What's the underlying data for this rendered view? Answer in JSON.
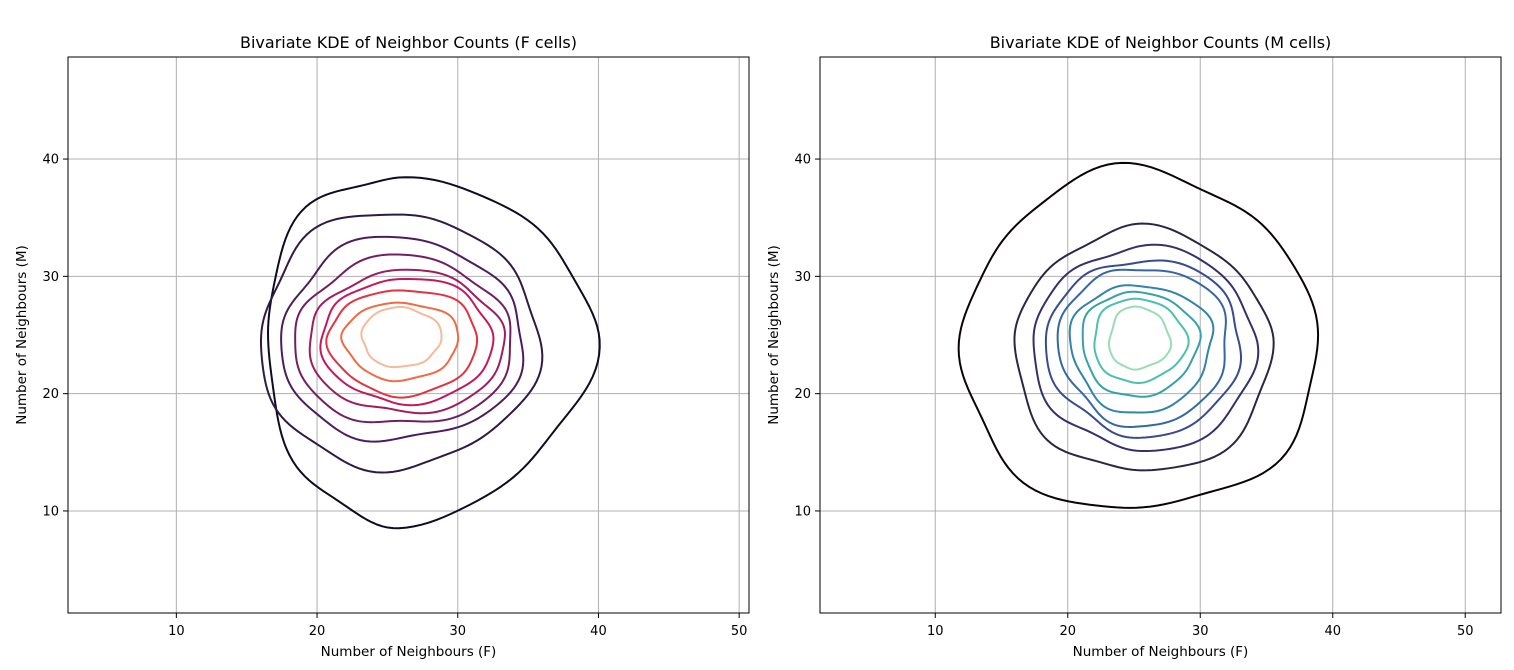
{
  "chart_data": [
    {
      "type": "contour",
      "title": "Bivariate KDE of Neighbor Counts (F cells)",
      "xlabel": "Number of Neighbours (F)",
      "ylabel": "Number of Neighbours (M)",
      "xlim": [
        2.3,
        50.7
      ],
      "ylim": [
        1.3,
        48.7
      ],
      "xticks": [
        10,
        20,
        30,
        40,
        50
      ],
      "yticks": [
        10,
        20,
        30,
        40
      ],
      "grid": true,
      "colormap": "rocket",
      "center": [
        25.8,
        24.6
      ],
      "contours": [
        {
          "level": 1,
          "color": "#0e0b22",
          "rx": [
            9.6,
            13.5
          ],
          "ry": [
            15.5,
            14.0
          ]
        },
        {
          "level": 2,
          "color": "#2e1a47",
          "rx": [
            10.0,
            9.8
          ],
          "ry": [
            11.0,
            10.8
          ]
        },
        {
          "level": 3,
          "color": "#4b1d5a",
          "rx": [
            8.4,
            8.8
          ],
          "ry": [
            8.7,
            8.6
          ]
        },
        {
          "level": 4,
          "color": "#711f63",
          "rx": [
            7.4,
            8.1
          ],
          "ry": [
            7.4,
            7.0
          ]
        },
        {
          "level": 5,
          "color": "#9b1e63",
          "rx": [
            6.3,
            7.6
          ],
          "ry": [
            6.3,
            5.8
          ]
        },
        {
          "level": 6,
          "color": "#c2185c",
          "rx": [
            5.4,
            6.8
          ],
          "ry": [
            5.4,
            5.2
          ]
        },
        {
          "level": 7,
          "color": "#e13342",
          "rx": [
            4.9,
            5.7
          ],
          "ry": [
            4.7,
            4.3
          ]
        },
        {
          "level": 8,
          "color": "#f06a43",
          "rx": [
            3.9,
            4.3
          ],
          "ry": [
            3.4,
            3.2
          ]
        },
        {
          "level": 9,
          "color": "#f6b99a",
          "rx": [
            2.6,
            3.0
          ],
          "ry": [
            2.3,
            2.8
          ]
        }
      ]
    },
    {
      "type": "contour",
      "title": "Bivariate KDE of Neighbor Counts (M cells)",
      "xlabel": "Number of Neighbours (F)",
      "ylabel": "Number of Neighbours (M)",
      "xlim": [
        1.3,
        52.7
      ],
      "ylim": [
        1.3,
        48.7
      ],
      "xticks": [
        10,
        20,
        30,
        40,
        50
      ],
      "yticks": [
        10,
        20,
        30,
        40
      ],
      "grid": true,
      "colormap": "mako",
      "center": [
        25.2,
        24.4
      ],
      "contours": [
        {
          "level": 1,
          "color": "#0b0405",
          "rx": [
            13.2,
            13.6
          ],
          "ry": [
            14.6,
            14.4
          ]
        },
        {
          "level": 2,
          "color": "#2c2545",
          "rx": [
            9.1,
            10.2
          ],
          "ry": [
            11.3,
            9.5
          ]
        },
        {
          "level": 3,
          "color": "#35306a",
          "rx": [
            7.7,
            9.1
          ],
          "ry": [
            9.3,
            8.0
          ]
        },
        {
          "level": 4,
          "color": "#384b8f",
          "rx": [
            6.7,
            8.0
          ],
          "ry": [
            8.0,
            7.0
          ]
        },
        {
          "level": 5,
          "color": "#3468a3",
          "rx": [
            5.8,
            7.0
          ],
          "ry": [
            7.1,
            6.4
          ]
        },
        {
          "level": 6,
          "color": "#3085a8",
          "rx": [
            5.0,
            5.7
          ],
          "ry": [
            6.0,
            4.9
          ]
        },
        {
          "level": 7,
          "color": "#36a1ab",
          "rx": [
            4.2,
            4.6
          ],
          "ry": [
            4.6,
            4.3
          ]
        },
        {
          "level": 8,
          "color": "#4bbfb0",
          "rx": [
            3.3,
            3.7
          ],
          "ry": [
            3.4,
            3.7
          ]
        },
        {
          "level": 9,
          "color": "#99ddb6",
          "rx": [
            2.1,
            2.5
          ],
          "ry": [
            2.3,
            3.0
          ]
        }
      ]
    }
  ]
}
